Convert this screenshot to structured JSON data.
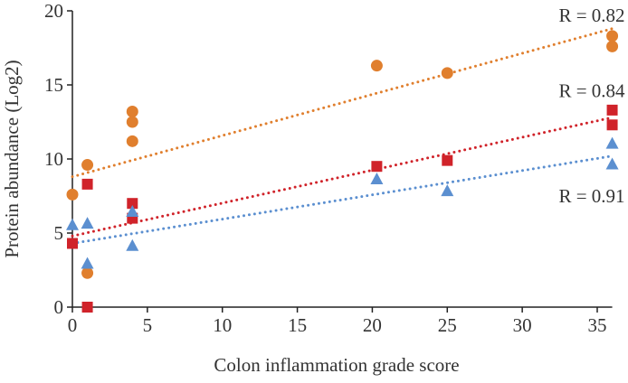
{
  "chart_data": {
    "type": "scatter",
    "title": "",
    "xlabel": "Colon inflammation grade score",
    "ylabel": "Protein abundance (Log2)",
    "xlim": [
      0,
      36
    ],
    "ylim": [
      0,
      20
    ],
    "xticks": [
      0,
      5,
      10,
      15,
      20,
      25,
      30,
      35
    ],
    "yticks": [
      0,
      5,
      10,
      15,
      20
    ],
    "grid": false,
    "series": [
      {
        "name": "orange",
        "marker": "circle",
        "color": "#E07F2E",
        "x": [
          0,
          1,
          1,
          4,
          4,
          4,
          20.3,
          25,
          36,
          36
        ],
        "y": [
          7.6,
          9.6,
          2.3,
          13.2,
          12.5,
          11.2,
          16.3,
          15.8,
          18.3,
          17.6
        ],
        "trend": {
          "x": [
            0,
            36
          ],
          "y": [
            8.8,
            18.8
          ]
        },
        "annotation": {
          "text": "R = 0.82",
          "x": 36,
          "y": 19.7
        }
      },
      {
        "name": "red",
        "marker": "square",
        "color": "#D0232A",
        "x": [
          0,
          1,
          1,
          4,
          4,
          20.3,
          25,
          36,
          36
        ],
        "y": [
          4.3,
          8.3,
          0,
          7.0,
          6.0,
          9.5,
          9.9,
          13.3,
          12.3
        ],
        "trend": {
          "x": [
            0,
            36
          ],
          "y": [
            4.8,
            12.8
          ]
        },
        "annotation": {
          "text": "R = 0.84",
          "x": 36,
          "y": 14.6
        }
      },
      {
        "name": "blue",
        "marker": "triangle",
        "color": "#5B8FD0",
        "x": [
          0,
          1,
          1,
          4,
          4,
          20.3,
          25,
          36,
          36
        ],
        "y": [
          5.5,
          5.6,
          2.9,
          6.4,
          4.1,
          8.6,
          7.8,
          11.0,
          9.6
        ],
        "trend": {
          "x": [
            0,
            36
          ],
          "y": [
            4.3,
            10.2
          ]
        },
        "annotation": {
          "text": "R = 0.91",
          "x": 36,
          "y": 7.5
        }
      }
    ]
  }
}
